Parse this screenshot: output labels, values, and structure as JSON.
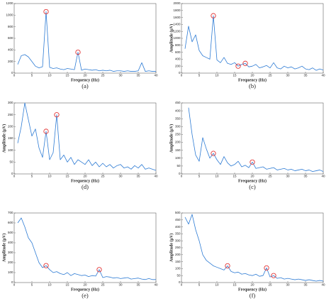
{
  "chart_data": [
    {
      "type": "line",
      "caption": "(a)",
      "x_label": "Frequency (Hz)",
      "color": "#2d7bd4",
      "circle_color": "#e02020",
      "x": [
        1,
        2,
        3,
        4,
        5,
        6,
        7,
        8,
        9,
        10,
        11,
        12,
        13,
        14,
        15,
        16,
        17,
        18,
        19,
        20,
        21,
        22,
        23,
        24,
        25,
        26,
        27,
        28,
        29,
        30,
        31,
        32,
        33,
        34,
        35,
        36,
        37,
        38,
        39,
        40
      ],
      "values": [
        150,
        300,
        320,
        280,
        200,
        120,
        90,
        110,
        1060,
        100,
        80,
        90,
        70,
        60,
        80,
        70,
        60,
        360,
        50,
        70,
        60,
        50,
        60,
        40,
        50,
        40,
        50,
        30,
        40,
        40,
        30,
        40,
        30,
        30,
        40,
        180,
        30,
        40,
        30,
        30
      ],
      "circled_x": [
        9,
        18
      ],
      "xlim": [
        0,
        40
      ],
      "xticks": [
        0,
        5,
        10,
        15,
        20,
        25,
        30,
        35,
        40
      ],
      "ylim": [
        0,
        1200
      ],
      "yticks": [
        0,
        200,
        400,
        600,
        800,
        1000,
        1200
      ]
    },
    {
      "type": "line",
      "caption": "(b)",
      "x_label": "Frequency (Hz)",
      "y_label": "Amplitude (μV)",
      "color": "#2d7bd4",
      "circle_color": "#e02020",
      "x": [
        1,
        2,
        3,
        4,
        5,
        6,
        7,
        8,
        9,
        10,
        11,
        12,
        13,
        14,
        15,
        16,
        17,
        18,
        19,
        20,
        21,
        22,
        23,
        24,
        25,
        26,
        27,
        28,
        29,
        30,
        31,
        32,
        33,
        34,
        35,
        36,
        37,
        38,
        39,
        40
      ],
      "values": [
        700,
        1350,
        900,
        1100,
        650,
        500,
        450,
        400,
        1650,
        380,
        300,
        450,
        280,
        250,
        300,
        200,
        250,
        280,
        180,
        200,
        250,
        150,
        180,
        220,
        150,
        300,
        150,
        120,
        200,
        150,
        180,
        120,
        150,
        200,
        120,
        100,
        150,
        80,
        120,
        90
      ],
      "circled_x": [
        9,
        16,
        18
      ],
      "xlim": [
        0,
        40
      ],
      "xticks": [
        0,
        5,
        10,
        15,
        20,
        25,
        30,
        35,
        40
      ],
      "ylim": [
        0,
        2000
      ],
      "yticks": [
        0,
        200,
        400,
        600,
        800,
        1000,
        1200,
        1400,
        1600,
        1800,
        2000
      ]
    },
    {
      "type": "line",
      "caption": "(d)",
      "x_label": "Frequency (Hz)",
      "y_label": "Amplitude (μV)",
      "color": "#2d7bd4",
      "circle_color": "#e02020",
      "x": [
        1,
        2,
        3,
        4,
        5,
        6,
        7,
        8,
        9,
        10,
        11,
        12,
        13,
        14,
        15,
        16,
        17,
        18,
        19,
        20,
        21,
        22,
        23,
        24,
        25,
        26,
        27,
        28,
        29,
        30,
        31,
        32,
        33,
        34,
        35,
        36,
        37,
        38,
        39,
        40
      ],
      "values": [
        130,
        200,
        300,
        230,
        160,
        190,
        110,
        70,
        180,
        60,
        90,
        250,
        60,
        80,
        50,
        70,
        40,
        60,
        50,
        40,
        60,
        35,
        50,
        30,
        45,
        30,
        40,
        25,
        35,
        40,
        25,
        30,
        20,
        35,
        25,
        40,
        20,
        25,
        20,
        15
      ],
      "circled_x": [
        9,
        12
      ],
      "xlim": [
        0,
        40
      ],
      "xticks": [
        0,
        5,
        10,
        15,
        20,
        25,
        30,
        35,
        40
      ],
      "ylim": [
        0,
        300
      ],
      "yticks": [
        0,
        50,
        100,
        150,
        200,
        250,
        300
      ]
    },
    {
      "type": "line",
      "caption": "(c)",
      "x_label": "Frequency (Hz)",
      "y_label": "Amplitude (μV)",
      "color": "#2d7bd4",
      "circle_color": "#e02020",
      "x": [
        2,
        3,
        4,
        5,
        6,
        7,
        8,
        9,
        10,
        11,
        12,
        13,
        14,
        15,
        16,
        17,
        18,
        19,
        20,
        21,
        22,
        23,
        24,
        25,
        26,
        27,
        28,
        29,
        30,
        31,
        32,
        33,
        34,
        35,
        36,
        37,
        38,
        39,
        40
      ],
      "values": [
        420,
        250,
        120,
        80,
        230,
        160,
        100,
        130,
        90,
        60,
        110,
        70,
        50,
        60,
        80,
        45,
        55,
        40,
        75,
        35,
        40,
        45,
        30,
        35,
        40,
        25,
        30,
        35,
        25,
        30,
        20,
        25,
        30,
        20,
        25,
        15,
        20,
        25,
        15
      ],
      "circled_x": [
        9,
        20
      ],
      "xlim": [
        0,
        40
      ],
      "xticks": [
        0,
        5,
        10,
        15,
        20,
        25,
        30,
        35,
        40
      ],
      "ylim": [
        0,
        450
      ],
      "yticks": [
        0,
        50,
        100,
        150,
        200,
        250,
        300,
        350,
        400,
        450
      ]
    },
    {
      "type": "line",
      "caption": "(e)",
      "x_label": "Frequency (Hz)",
      "y_label": "Amplitude (μV)",
      "color": "#2d7bd4",
      "circle_color": "#e02020",
      "x": [
        1,
        2,
        3,
        4,
        5,
        6,
        7,
        8,
        9,
        10,
        11,
        12,
        13,
        14,
        15,
        16,
        17,
        18,
        19,
        20,
        21,
        22,
        23,
        24,
        25,
        26,
        27,
        28,
        29,
        30,
        31,
        32,
        33,
        34,
        35,
        36,
        37,
        38,
        39,
        40
      ],
      "values": [
        600,
        650,
        560,
        450,
        400,
        300,
        200,
        150,
        170,
        130,
        100,
        110,
        90,
        80,
        100,
        70,
        90,
        80,
        70,
        75,
        60,
        70,
        65,
        130,
        50,
        60,
        55,
        45,
        50,
        40,
        45,
        50,
        35,
        40,
        45,
        35,
        30,
        40,
        30,
        30
      ],
      "circled_x": [
        9,
        24
      ],
      "xlim": [
        0,
        40
      ],
      "xticks": [
        0,
        5,
        10,
        15,
        20,
        25,
        30,
        35,
        40
      ],
      "ylim": [
        0,
        700
      ],
      "yticks": [
        0,
        100,
        200,
        300,
        400,
        500,
        600,
        700
      ]
    },
    {
      "type": "line",
      "caption": "(f)",
      "x_label": "Frequency (Hz)",
      "y_label": "Amplitude (μV)",
      "color": "#2d7bd4",
      "circle_color": "#e02020",
      "x": [
        1,
        2,
        3,
        4,
        5,
        6,
        7,
        8,
        9,
        10,
        11,
        12,
        13,
        14,
        15,
        16,
        17,
        18,
        19,
        20,
        21,
        22,
        23,
        24,
        25,
        26,
        27,
        28,
        29,
        30,
        31,
        32,
        33,
        34,
        35,
        36,
        37,
        38,
        39,
        40
      ],
      "values": [
        470,
        420,
        490,
        380,
        300,
        200,
        160,
        140,
        120,
        110,
        100,
        90,
        120,
        80,
        70,
        75,
        60,
        65,
        55,
        50,
        60,
        45,
        50,
        105,
        40,
        50,
        30,
        35,
        25,
        30,
        25,
        20,
        25,
        20,
        15,
        20,
        15,
        10,
        15,
        10
      ],
      "circled_x": [
        13,
        24,
        26
      ],
      "xlim": [
        0,
        40
      ],
      "xticks": [
        0,
        5,
        10,
        15,
        20,
        25,
        30,
        35,
        40
      ],
      "ylim": [
        0,
        500
      ],
      "yticks": [
        0,
        50,
        100,
        150,
        200,
        250,
        300,
        350,
        400,
        450,
        500
      ]
    }
  ]
}
